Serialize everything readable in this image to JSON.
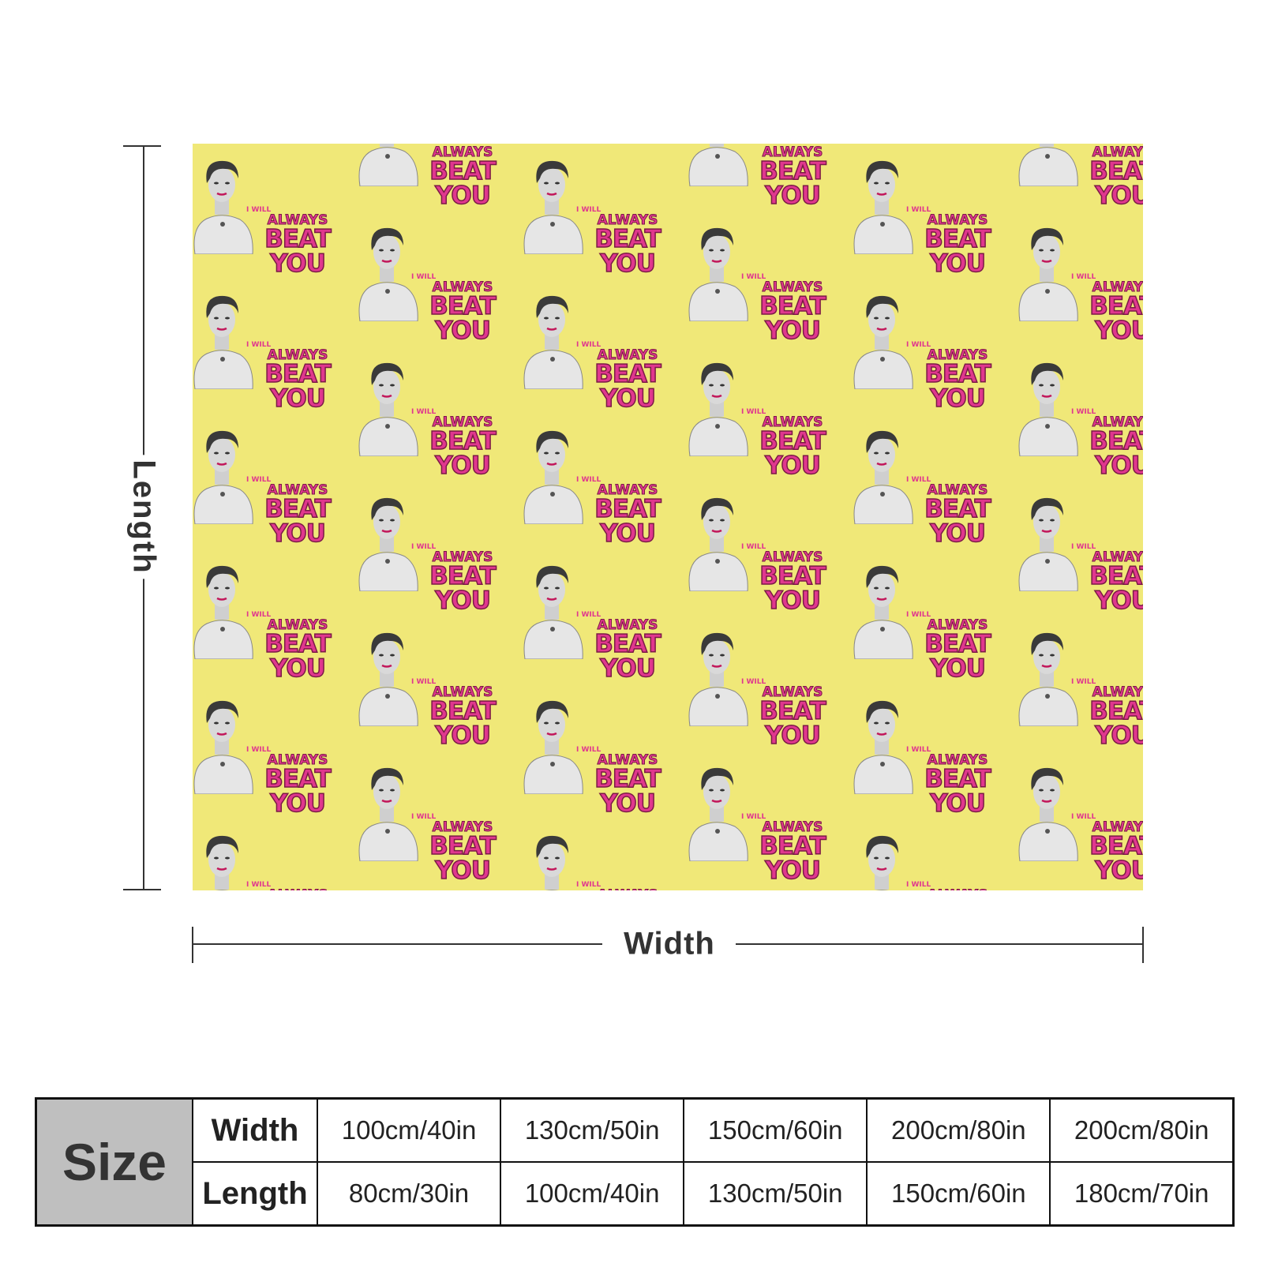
{
  "diagram": {
    "length_label": "Length",
    "width_label": "Width",
    "colors": {
      "blanket": "#f0e878",
      "text_pink": "#e0378e",
      "line": "#333333"
    }
  },
  "pattern": {
    "caption_small": "I WILL",
    "caption_mid": "ALWAYS",
    "caption_large": "BEAT YOU",
    "portrait_icon": "woman-portrait-icon"
  },
  "size_table": {
    "header": "Size",
    "rows": [
      {
        "label": "Width",
        "values": [
          "100cm/40in",
          "130cm/50in",
          "150cm/60in",
          "200cm/80in",
          "200cm/80in"
        ]
      },
      {
        "label": "Length",
        "values": [
          "80cm/30in",
          "100cm/40in",
          "130cm/50in",
          "150cm/60in",
          "180cm/70in"
        ]
      }
    ]
  }
}
